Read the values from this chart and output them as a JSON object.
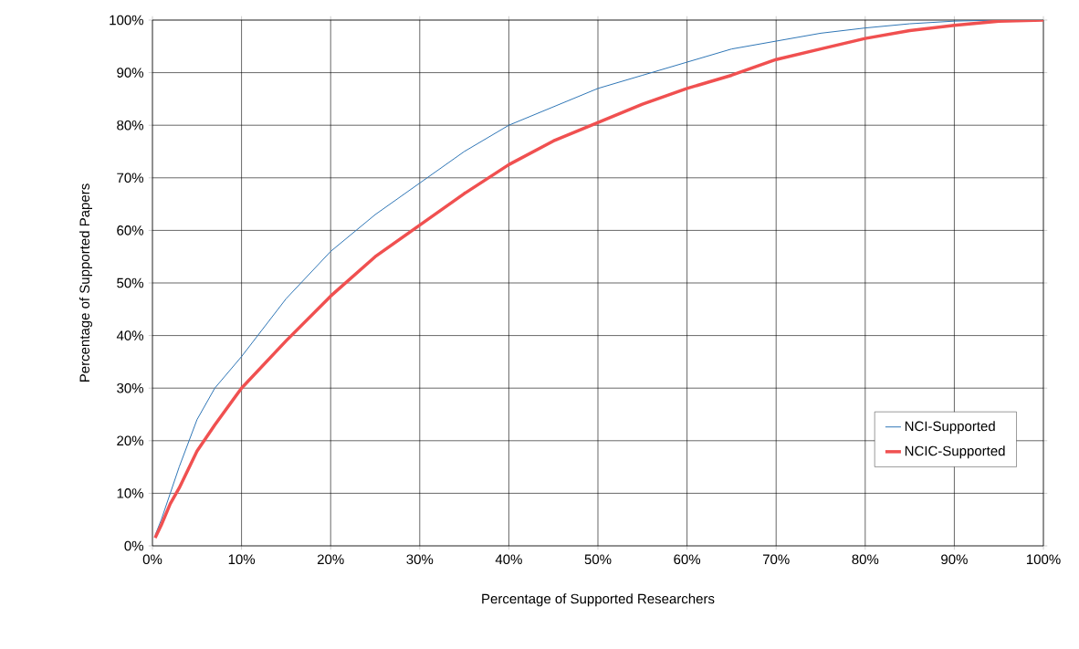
{
  "chart_data": {
    "type": "line",
    "xlabel": "Percentage of Supported Researchers",
    "ylabel": "Percentage of Supported Papers",
    "xlim": [
      0,
      100
    ],
    "ylim": [
      0,
      100
    ],
    "xticks": [
      {
        "value": 0,
        "label": "0%"
      },
      {
        "value": 10,
        "label": "10%"
      },
      {
        "value": 20,
        "label": "20%"
      },
      {
        "value": 30,
        "label": "30%"
      },
      {
        "value": 40,
        "label": "40%"
      },
      {
        "value": 50,
        "label": "50%"
      },
      {
        "value": 60,
        "label": "60%"
      },
      {
        "value": 70,
        "label": "70%"
      },
      {
        "value": 80,
        "label": "80%"
      },
      {
        "value": 90,
        "label": "90%"
      },
      {
        "value": 100,
        "label": "100%"
      }
    ],
    "yticks": [
      {
        "value": 0,
        "label": "0%"
      },
      {
        "value": 10,
        "label": "10%"
      },
      {
        "value": 20,
        "label": "20%"
      },
      {
        "value": 30,
        "label": "30%"
      },
      {
        "value": 40,
        "label": "40%"
      },
      {
        "value": 50,
        "label": "50%"
      },
      {
        "value": 60,
        "label": "60%"
      },
      {
        "value": 70,
        "label": "70%"
      },
      {
        "value": 80,
        "label": "80%"
      },
      {
        "value": 90,
        "label": "90%"
      },
      {
        "value": 100,
        "label": "100%"
      }
    ],
    "x": [
      0.3,
      1,
      2,
      3,
      5,
      7,
      10,
      15,
      20,
      25,
      30,
      35,
      40,
      45,
      50,
      55,
      60,
      65,
      70,
      75,
      80,
      85,
      90,
      95,
      100
    ],
    "series": [
      {
        "name": "NCI-Supported",
        "color": "#2e75b6",
        "values": [
          2,
          5,
          10,
          15,
          24,
          30,
          36,
          47,
          56,
          63,
          69,
          75,
          80,
          83.5,
          87,
          89.5,
          92,
          94.5,
          96,
          97.5,
          98.5,
          99.3,
          99.8,
          100,
          100
        ]
      },
      {
        "name": "NCIC-Supported",
        "color": "#f05050",
        "values": [
          1.5,
          4,
          8,
          11,
          18,
          23,
          30,
          39,
          47.5,
          55,
          61,
          67,
          72.5,
          77,
          80.5,
          84,
          87,
          89.5,
          92.5,
          94.5,
          96.5,
          98,
          99,
          99.8,
          100
        ]
      }
    ],
    "grid": true,
    "legend": "bottom right",
    "marker": "none",
    "line_style": "solid"
  }
}
